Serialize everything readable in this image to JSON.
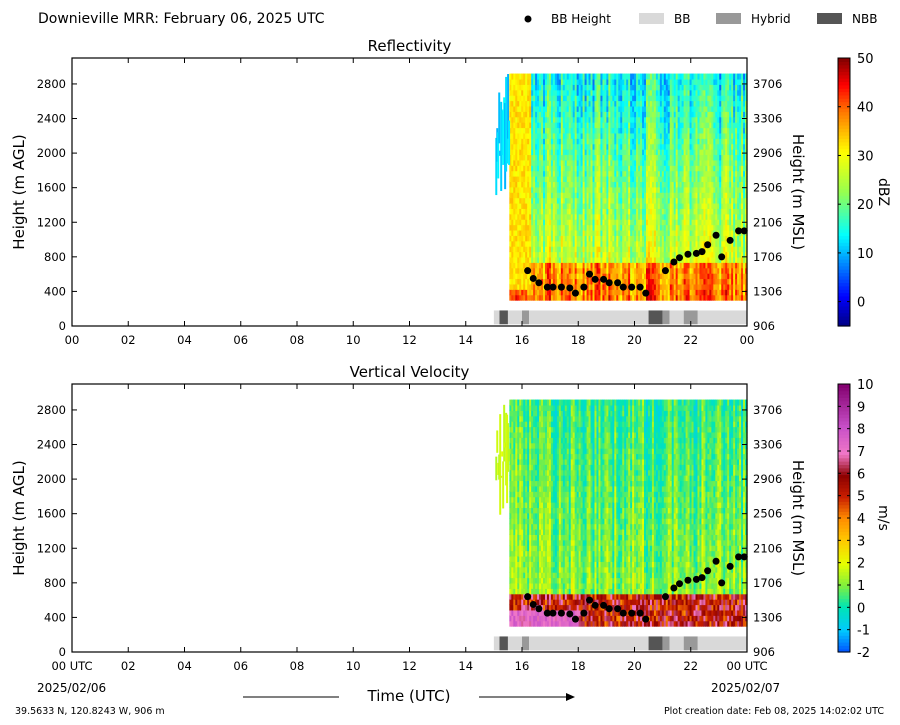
{
  "header": {
    "title": "Downieville MRR:  February 06, 2025 UTC",
    "legend": [
      {
        "label": "BB Height",
        "kind": "dot",
        "color": "#000000"
      },
      {
        "label": "BB",
        "kind": "swatch",
        "color": "#d9d9d9"
      },
      {
        "label": "Hybrid",
        "kind": "swatch",
        "color": "#999999"
      },
      {
        "label": "NBB",
        "kind": "swatch",
        "color": "#555555"
      }
    ]
  },
  "footer": {
    "location": "39.5633 N, 120.8243 W, 906 m",
    "creation": "Plot creation date: Feb 08, 2025 14:02:02 UTC",
    "xlabel": "Time (UTC)",
    "start_date": "2025/02/06",
    "end_date": "2025/02/07"
  },
  "chart_data": [
    {
      "type": "heatmap",
      "title": "Reflectivity",
      "ylabel": "Height (m AGL)",
      "ylabel_right": "Height (m MSL)",
      "colorbar_label": "dBZ",
      "colorbar_ticks": [
        "0",
        "10",
        "20",
        "30",
        "40",
        "50"
      ],
      "colorbar_values": [
        0,
        10,
        20,
        30,
        40,
        50
      ],
      "colorbar_range": [
        -5,
        50
      ],
      "yticks_left": [
        "0",
        "400",
        "800",
        "1200",
        "1600",
        "2000",
        "2400",
        "2800"
      ],
      "ytick_values": [
        0,
        400,
        800,
        1200,
        1600,
        2000,
        2400,
        2800
      ],
      "yticks_right": [
        "906",
        "1306",
        "1706",
        "2106",
        "2506",
        "2906",
        "3306",
        "3706"
      ],
      "xticks": [
        "00",
        "02",
        "04",
        "06",
        "08",
        "10",
        "12",
        "14",
        "16",
        "18",
        "20",
        "22",
        "00"
      ],
      "xtick_values": [
        0,
        2,
        4,
        6,
        8,
        10,
        12,
        14,
        16,
        18,
        20,
        22,
        24
      ],
      "xlim": [
        0,
        24
      ],
      "ylim": [
        0,
        3100
      ]
    },
    {
      "type": "heatmap",
      "title": "Vertical Velocity",
      "ylabel": "Height (m AGL)",
      "ylabel_right": "Height (m MSL)",
      "colorbar_label": "m/s",
      "colorbar_ticks": [
        "-2",
        "-1",
        "0",
        "1",
        "2",
        "3",
        "4",
        "5",
        "6",
        "7",
        "8",
        "9",
        "10"
      ],
      "colorbar_values": [
        -2,
        -1,
        0,
        1,
        2,
        3,
        4,
        5,
        6,
        7,
        8,
        9,
        10
      ],
      "colorbar_range": [
        -2,
        10
      ],
      "yticks_left": [
        "0",
        "400",
        "800",
        "1200",
        "1600",
        "2000",
        "2400",
        "2800"
      ],
      "ytick_values": [
        0,
        400,
        800,
        1200,
        1600,
        2000,
        2400,
        2800
      ],
      "yticks_right": [
        "906",
        "1306",
        "1706",
        "2106",
        "2506",
        "2906",
        "3306",
        "3706"
      ],
      "xticks": [
        "00 UTC",
        "02",
        "04",
        "06",
        "08",
        "10",
        "12",
        "14",
        "16",
        "18",
        "20",
        "22",
        "00 UTC"
      ],
      "xtick_values": [
        0,
        2,
        4,
        6,
        8,
        10,
        12,
        14,
        16,
        18,
        20,
        22,
        24
      ],
      "xlim": [
        0,
        24
      ],
      "ylim": [
        0,
        3100
      ]
    }
  ],
  "bb_height": {
    "times": [
      16.2,
      16.4,
      16.6,
      16.9,
      17.1,
      17.4,
      17.7,
      17.9,
      18.2,
      18.4,
      18.6,
      18.9,
      19.1,
      19.4,
      19.6,
      19.9,
      20.2,
      20.4,
      21.1,
      21.4,
      21.6,
      21.9,
      22.2,
      22.4,
      22.6,
      22.9,
      23.1,
      23.4,
      23.7,
      23.9
    ],
    "heights": [
      640,
      550,
      500,
      450,
      450,
      450,
      440,
      380,
      450,
      600,
      540,
      540,
      500,
      500,
      450,
      450,
      450,
      380,
      640,
      740,
      790,
      830,
      840,
      860,
      940,
      1050,
      800,
      990,
      1100,
      1100
    ]
  },
  "bb_strip": {
    "segments": [
      {
        "start": 15.0,
        "end": 15.2,
        "type": "BB"
      },
      {
        "start": 15.2,
        "end": 15.5,
        "type": "NBB"
      },
      {
        "start": 15.5,
        "end": 16.0,
        "type": "BB"
      },
      {
        "start": 16.0,
        "end": 16.25,
        "type": "Hybrid"
      },
      {
        "start": 16.25,
        "end": 20.5,
        "type": "BB"
      },
      {
        "start": 20.5,
        "end": 21.0,
        "type": "NBB"
      },
      {
        "start": 21.0,
        "end": 21.25,
        "type": "Hybrid"
      },
      {
        "start": 21.25,
        "end": 21.75,
        "type": "BB"
      },
      {
        "start": 21.75,
        "end": 22.25,
        "type": "Hybrid"
      },
      {
        "start": 22.25,
        "end": 24.0,
        "type": "BB"
      }
    ]
  }
}
